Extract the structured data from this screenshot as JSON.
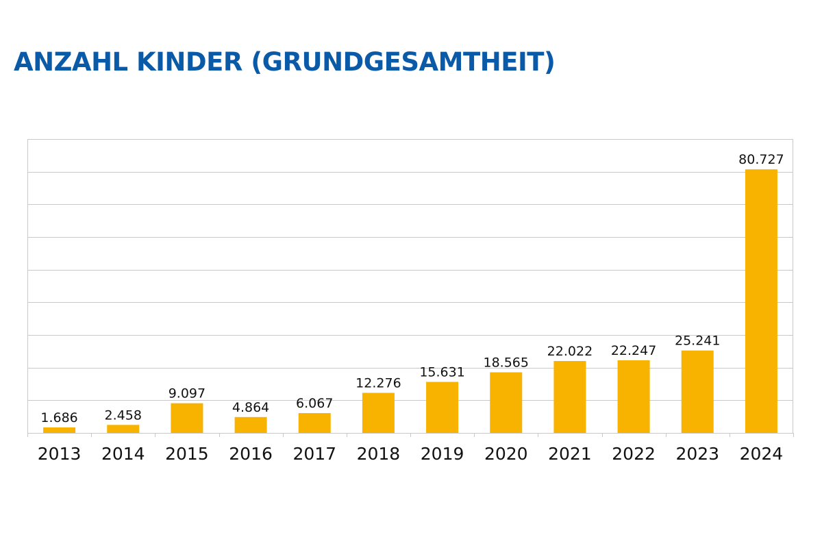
{
  "title": "ANZAHL KINDER (GRUNDGESAMTHEIT)",
  "colors": {
    "title": "#0a5aa8",
    "bar": "#f8b200",
    "grid": "#c8c8c8",
    "frame": "#c8c8c8",
    "text": "#111111"
  },
  "chart_data": {
    "type": "bar",
    "title": "ANZAHL KINDER (GRUNDGESAMTHEIT)",
    "xlabel": "",
    "ylabel": "",
    "categories": [
      "2013",
      "2014",
      "2015",
      "2016",
      "2017",
      "2018",
      "2019",
      "2020",
      "2021",
      "2022",
      "2023",
      "2024"
    ],
    "values": [
      1686,
      2458,
      9097,
      4864,
      6067,
      12276,
      15631,
      18565,
      22022,
      22247,
      25241,
      80727
    ],
    "value_labels": [
      "1.686",
      "2.458",
      "9.097",
      "4.864",
      "6.067",
      "12.276",
      "15.631",
      "18.565",
      "22.022",
      "22.247",
      "25.241",
      "80.727"
    ],
    "ylim": [
      0,
      90000
    ],
    "y_grid_step": 10000,
    "grid": true,
    "y_tick_labels_shown": false,
    "legend": "none"
  }
}
